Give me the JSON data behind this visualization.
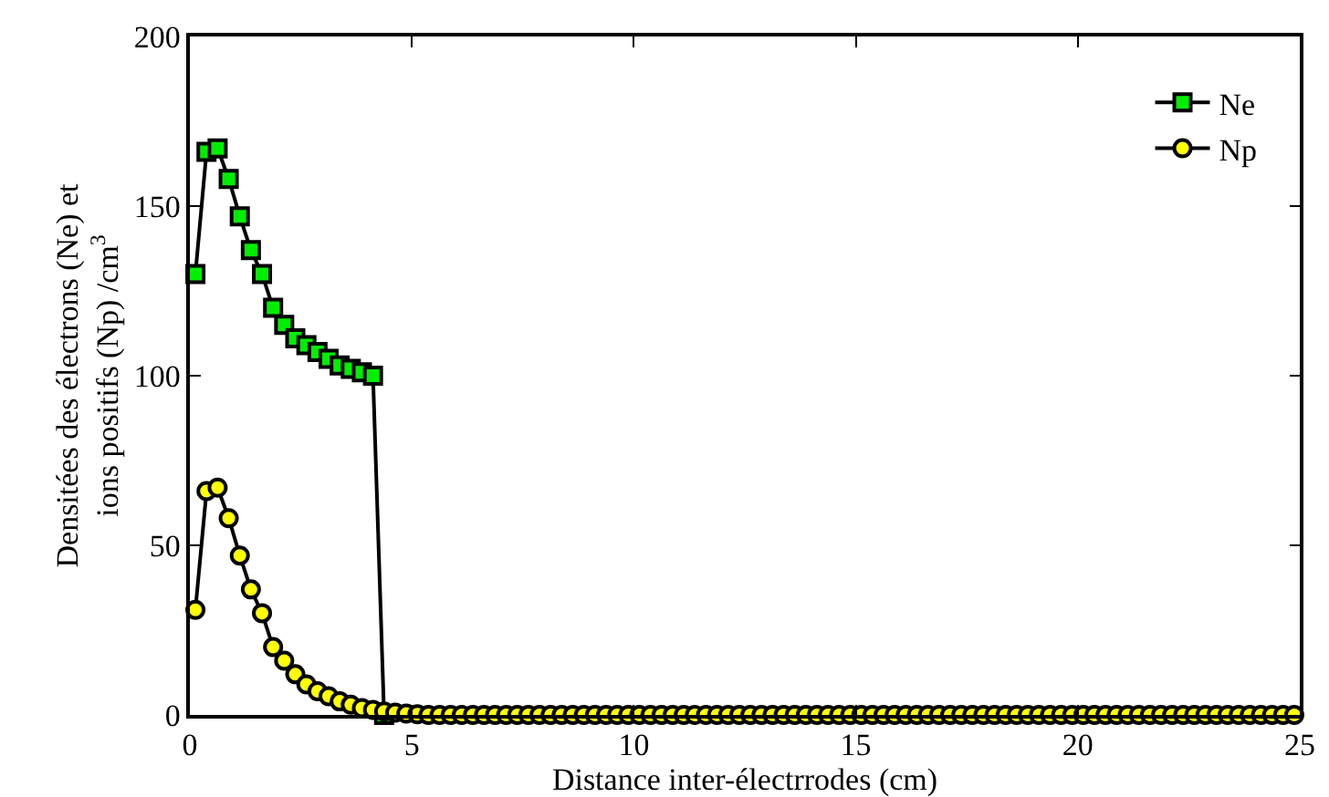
{
  "chart_data": {
    "type": "line",
    "xlabel": "Distance inter-électrrodes (cm)",
    "ylabel": "Densitées des électrons (Ne) et\nions positifs (Np) /cm$^{3}$",
    "x": [
      0.125,
      0.375,
      0.625,
      0.875,
      1.125,
      1.375,
      1.625,
      1.875,
      2.125,
      2.375,
      2.625,
      2.875,
      3.125,
      3.375,
      3.625,
      3.875,
      4.125,
      4.375,
      4.625,
      4.875,
      5.125,
      5.375,
      5.625,
      5.875,
      6.125,
      6.375,
      6.625,
      6.875,
      7.125,
      7.375,
      7.625,
      7.875,
      8.125,
      8.375,
      8.625,
      8.875,
      9.125,
      9.375,
      9.625,
      9.875,
      10.125,
      10.375,
      10.625,
      10.875,
      11.125,
      11.375,
      11.625,
      11.875,
      12.125,
      12.375,
      12.625,
      12.875,
      13.125,
      13.375,
      13.625,
      13.875,
      14.125,
      14.375,
      14.625,
      14.875,
      15.125,
      15.375,
      15.625,
      15.875,
      16.125,
      16.375,
      16.625,
      16.875,
      17.125,
      17.375,
      17.625,
      17.875,
      18.125,
      18.375,
      18.625,
      18.875,
      19.125,
      19.375,
      19.625,
      19.875,
      20.125,
      20.375,
      20.625,
      20.875,
      21.125,
      21.375,
      21.625,
      21.875,
      22.125,
      22.375,
      22.625,
      22.875,
      23.125,
      23.375,
      23.625,
      23.875,
      24.125,
      24.375,
      24.625,
      24.875
    ],
    "series": [
      {
        "name": "Ne",
        "color": "#00ee00",
        "marker": "square",
        "values": [
          130,
          166,
          167,
          158,
          147,
          137,
          130,
          120,
          115,
          111,
          109,
          107,
          105,
          103,
          102,
          101,
          100,
          0,
          null,
          null,
          null,
          null,
          null,
          null,
          null,
          null,
          null,
          null,
          null,
          null,
          null,
          null,
          null,
          null,
          null,
          null,
          null,
          null,
          null,
          null,
          null,
          null,
          null,
          null,
          null,
          null,
          null,
          null,
          null,
          null,
          null,
          null,
          null,
          null,
          null,
          null,
          null,
          null,
          null,
          null,
          null,
          null,
          null,
          null,
          null,
          null,
          null,
          null,
          null,
          null,
          null,
          null,
          null,
          null,
          null,
          null,
          null,
          null,
          null,
          null,
          null,
          null,
          null,
          null,
          null,
          null,
          null,
          null,
          null,
          null,
          null,
          null,
          null,
          null,
          null,
          null,
          null,
          null,
          null,
          null
        ]
      },
      {
        "name": "Np",
        "color": "#ffff00",
        "marker": "circle",
        "values": [
          31,
          66,
          67,
          58,
          47,
          37,
          30,
          20,
          16,
          12,
          9,
          7,
          5.5,
          4,
          3,
          2,
          1.5,
          1,
          0.7,
          0.4,
          0.2,
          0,
          0,
          0,
          0,
          0,
          0,
          0,
          0,
          0,
          0,
          0,
          0,
          0,
          0,
          0,
          0,
          0,
          0,
          0,
          0,
          0,
          0,
          0,
          0,
          0,
          0,
          0,
          0,
          0,
          0,
          0,
          0,
          0,
          0,
          0,
          0,
          0,
          0,
          0,
          0,
          0,
          0,
          0,
          0,
          0,
          0,
          0,
          0,
          0,
          0,
          0,
          0,
          0,
          0,
          0,
          0,
          0,
          0,
          0,
          0,
          0,
          0,
          0,
          0,
          0,
          0,
          0,
          0,
          0,
          0,
          0,
          0,
          0,
          0,
          0,
          0,
          0,
          0,
          0
        ]
      }
    ],
    "xlim": [
      0,
      25
    ],
    "xticks": [
      0,
      5,
      10,
      15,
      20,
      25
    ],
    "ylim": [
      0,
      200
    ],
    "yticks": [
      0,
      50,
      100,
      150,
      200
    ],
    "grid": false,
    "legend": "top right",
    "line_style": "solid"
  }
}
